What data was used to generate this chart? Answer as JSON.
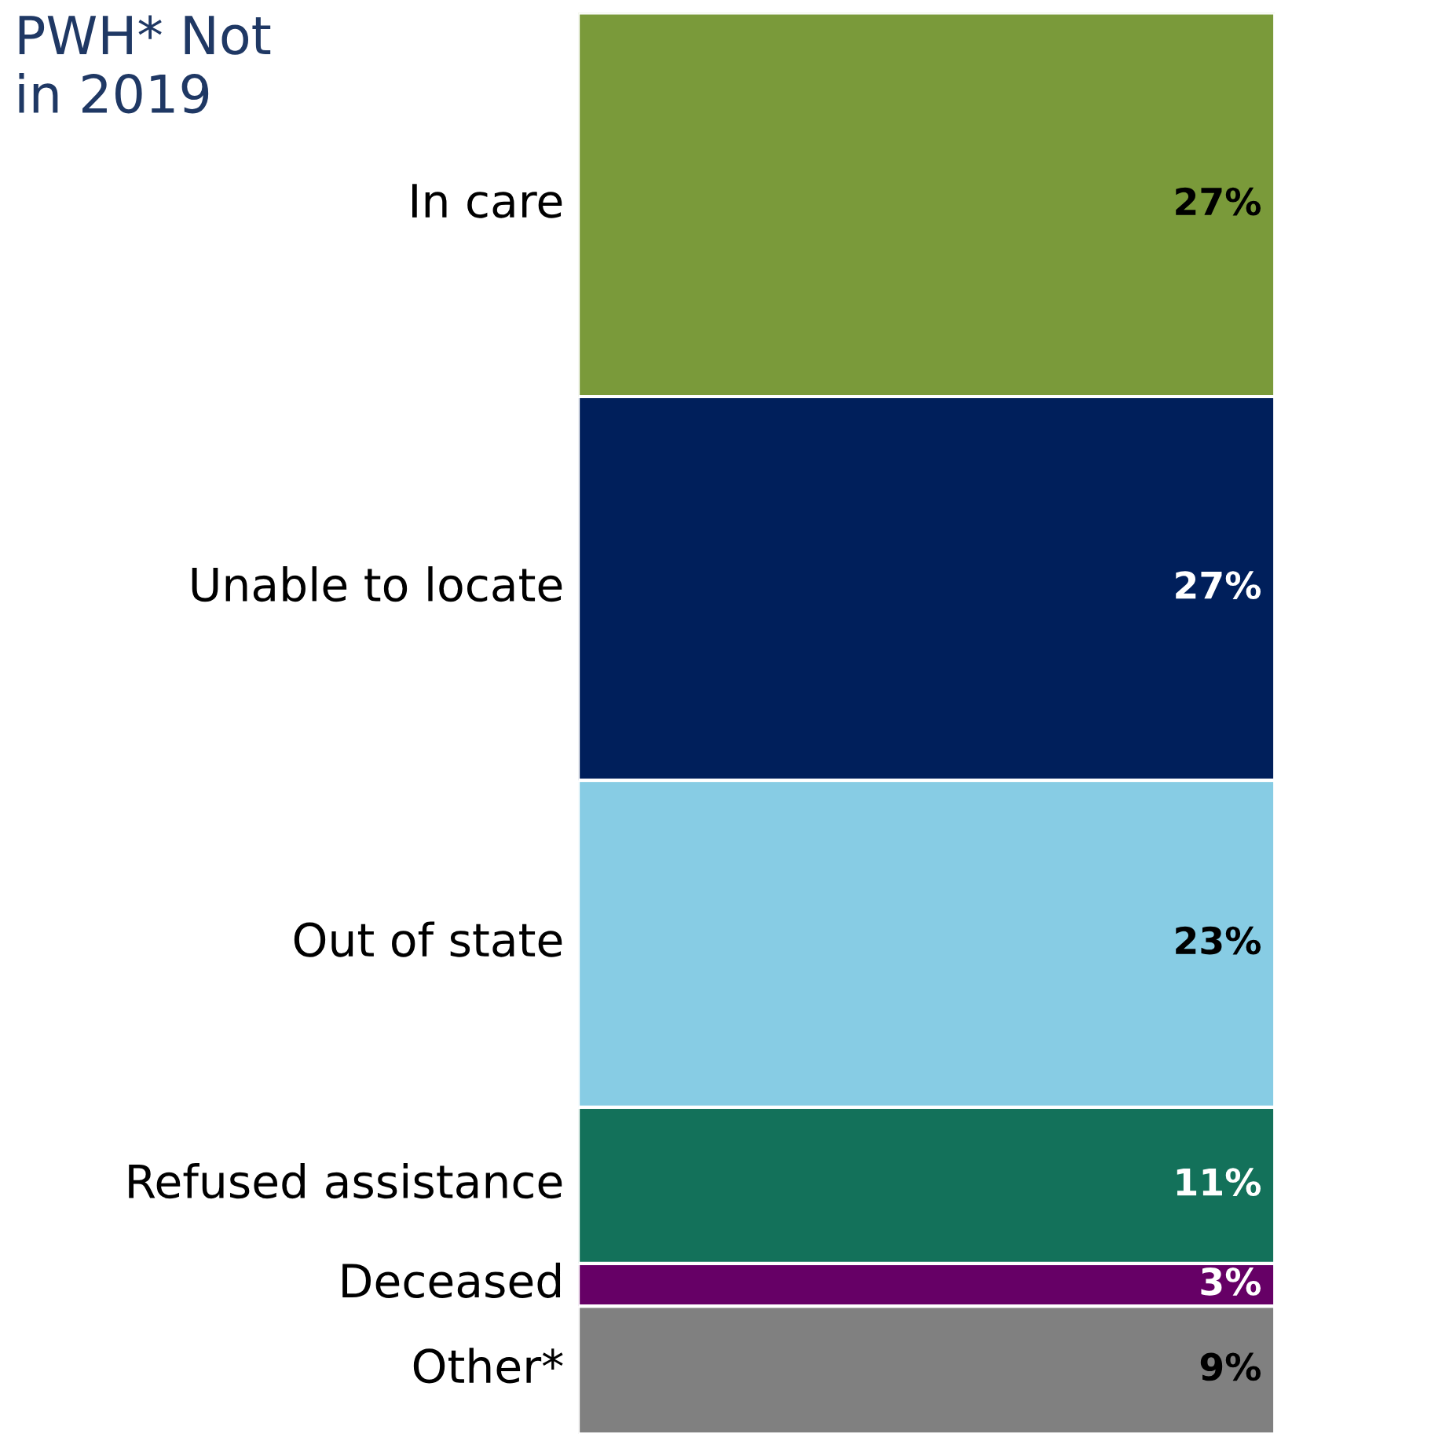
{
  "chart_data": {
    "type": "bar",
    "title": "PWH* Not\nin 2019",
    "stacked": true,
    "categories": [
      null
    ],
    "series": [
      {
        "name": "Other*",
        "color": "#808080",
        "values": [
          9
        ],
        "value_labels": [
          "9%"
        ]
      },
      {
        "name": "Deceased",
        "color": "#660066",
        "values": [
          3
        ],
        "value_labels": [
          "3%"
        ]
      },
      {
        "name": "Refused assistance",
        "color": "#13715a",
        "values": [
          11
        ],
        "value_labels": [
          "11%"
        ]
      },
      {
        "name": "Out of state",
        "color": "#87cce4",
        "values": [
          23
        ],
        "value_labels": [
          "23%"
        ]
      },
      {
        "name": "Unable to locate",
        "color": "#001f5b",
        "values": [
          27
        ],
        "value_labels": [
          "27%"
        ]
      },
      {
        "name": "In care",
        "color": "#7a9a3a",
        "values": [
          27
        ],
        "value_labels": [
          "27%"
        ]
      }
    ]
  }
}
